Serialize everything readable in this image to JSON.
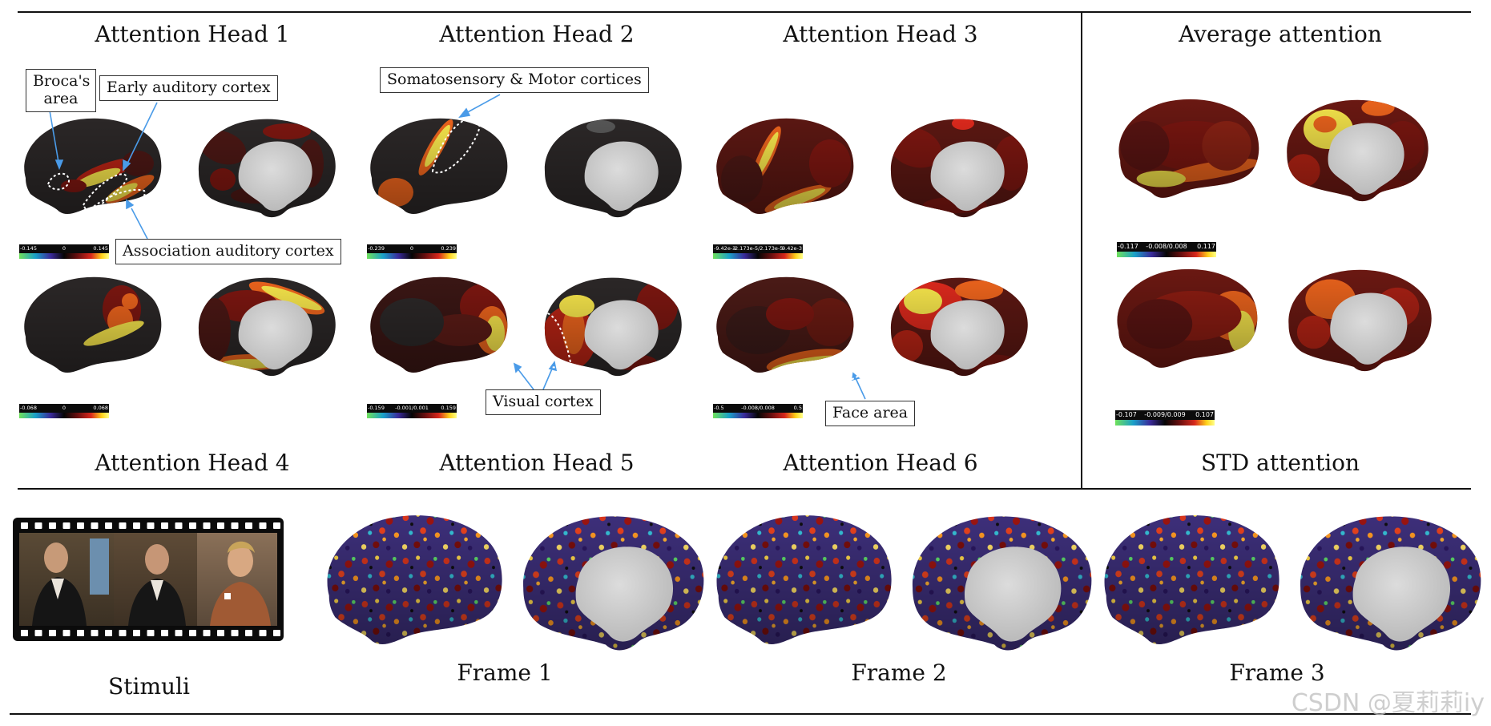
{
  "heads": [
    {
      "title": "Attention Head 1",
      "cbar": [
        "-0.145",
        "0",
        "0.145"
      ]
    },
    {
      "title": "Attention Head 2",
      "cbar": [
        "-0.239",
        "0",
        "0.239"
      ]
    },
    {
      "title": "Attention Head 3",
      "cbar": [
        "-9.42e-3",
        "-2.173e-5/2.173e-5",
        "9.42e-3"
      ]
    },
    {
      "title": "Attention Head 4",
      "cbar": [
        "-0.068",
        "0",
        "0.068"
      ]
    },
    {
      "title": "Attention Head 5",
      "cbar": [
        "-0.159",
        "-0.001/0.001",
        "0.159"
      ]
    },
    {
      "title": "Attention Head 6",
      "cbar": [
        "-0.5",
        "-0.008/0.008",
        "0.5"
      ]
    }
  ],
  "average": {
    "title": "Average attention",
    "cbar": [
      "-0.117",
      "-0.008/0.008",
      "0.117"
    ]
  },
  "std": {
    "title": "STD attention",
    "cbar": [
      "-0.107",
      "-0.009/0.009",
      "0.107"
    ]
  },
  "callouts": {
    "broca": "Broca's area",
    "early_auditory": "Early auditory cortex",
    "association_auditory": "Association auditory cortex",
    "somatosensory": "Somatosensory & Motor cortices",
    "visual": "Visual cortex",
    "face": "Face area"
  },
  "stimuli_label": "Stimuli",
  "frames": [
    "Frame 1",
    "Frame 2",
    "Frame 3"
  ],
  "watermark": "CSDN @夏莉莉iy",
  "colors": {
    "dark_cortex": "#2b2727",
    "medial_wall": "#c9c9c9",
    "hot_red": "#8c1a12",
    "hot_yellow": "#f3e24a",
    "line": "#111111",
    "callout_arrow": "#4a9be8"
  }
}
